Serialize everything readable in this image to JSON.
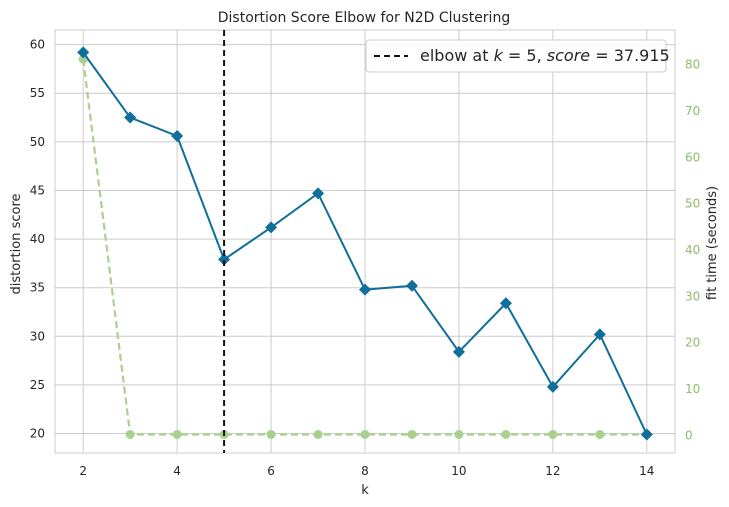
{
  "chart_data": {
    "type": "line",
    "title": "Distortion Score Elbow for N2D Clustering",
    "xlabel": "k",
    "ylabel": "distortion score",
    "y2label": "fit time (seconds)",
    "xlim": [
      1.4,
      14.6
    ],
    "ylim": [
      18,
      61.5
    ],
    "y2lim": [
      -3.8,
      87.5
    ],
    "xticks": [
      2,
      4,
      6,
      8,
      10,
      12,
      14
    ],
    "yticks": [
      20,
      25,
      30,
      35,
      40,
      45,
      50,
      55,
      60
    ],
    "y2ticks": [
      0,
      10,
      20,
      30,
      40,
      50,
      60,
      70,
      80
    ],
    "grid": true,
    "legend_position": "top-right",
    "elbow": {
      "k": 5,
      "score": 37.915,
      "label_prefix": "elbow at ",
      "label_k": "k",
      "label_eq1": " = 5, ",
      "label_score": "score",
      "label_eq2": " = 37.915"
    },
    "series": [
      {
        "name": "distortion score",
        "axis": "left",
        "color": "#0f6e9a",
        "x": [
          2,
          3,
          4,
          5,
          6,
          7,
          8,
          9,
          10,
          11,
          12,
          13,
          14
        ],
        "values": [
          59.2,
          52.5,
          50.6,
          37.9,
          41.2,
          44.7,
          34.8,
          35.2,
          28.4,
          33.4,
          24.8,
          30.2,
          19.9
        ]
      },
      {
        "name": "fit time (seconds)",
        "axis": "right",
        "color": "#a9d18e",
        "x": [
          2,
          3,
          4,
          5,
          6,
          7,
          8,
          9,
          10,
          11,
          12,
          13,
          14
        ],
        "values": [
          81.2,
          0.2,
          0.2,
          0.2,
          0.2,
          0.2,
          0.2,
          0.2,
          0.2,
          0.2,
          0.2,
          0.2,
          0.2
        ]
      }
    ],
    "colors": {
      "grid": "#cccccc",
      "frame": "#cccccc",
      "elbow_line": "#111111",
      "fit_axis_text": "#8fbc6a"
    }
  }
}
